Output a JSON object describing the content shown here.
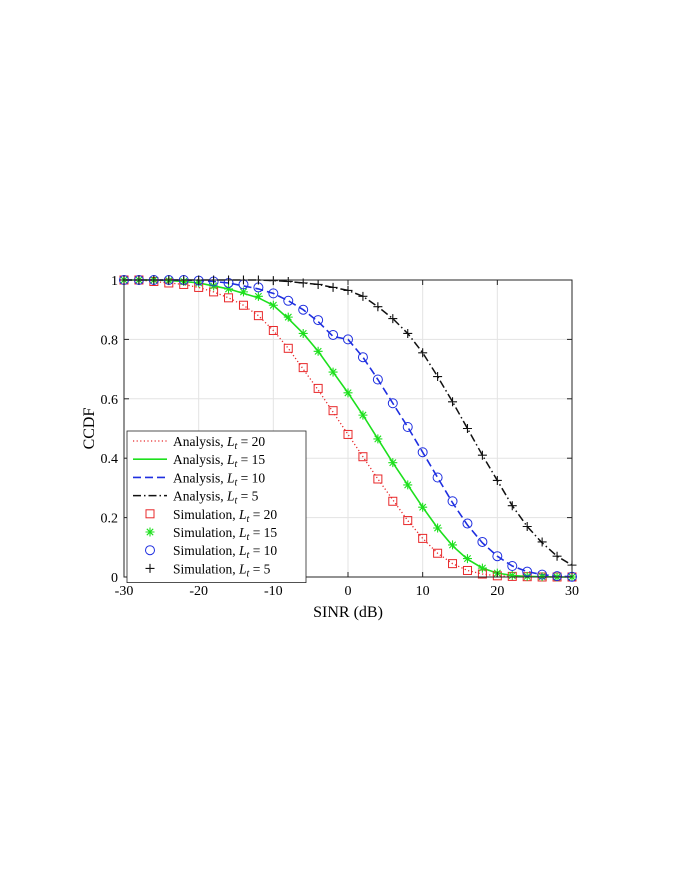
{
  "chart_data": {
    "type": "line",
    "title": "",
    "xlabel": "SINR (dB)",
    "ylabel": "CCDF",
    "xlim": [
      -30,
      30
    ],
    "ylim": [
      0,
      1
    ],
    "xticks": [
      -30,
      -20,
      -10,
      0,
      10,
      20,
      30
    ],
    "yticks": [
      0,
      0.2,
      0.4,
      0.6,
      0.8,
      1
    ],
    "xtick_labels": [
      "-30",
      "-20",
      "-10",
      "0",
      "10",
      "20",
      "30"
    ],
    "ytick_labels": [
      "0",
      "0.2",
      "0.4",
      "0.6",
      "0.8",
      "1"
    ],
    "grid": true,
    "legend_position": "bottom-left",
    "x": [
      -30,
      -28,
      -26,
      -24,
      -22,
      -20,
      -18,
      -16,
      -14,
      -12,
      -10,
      -8,
      -6,
      -4,
      -2,
      0,
      2,
      4,
      6,
      8,
      10,
      12,
      14,
      16,
      18,
      20,
      22,
      24,
      26,
      28,
      30
    ],
    "series": [
      {
        "name": "Analysis, L_t = 20",
        "kind": "analysis",
        "color": "#e8282a",
        "style": "dotted",
        "values": [
          1.0,
          1.0,
          0.995,
          0.99,
          0.985,
          0.975,
          0.96,
          0.94,
          0.915,
          0.88,
          0.83,
          0.77,
          0.7,
          0.63,
          0.555,
          0.48,
          0.405,
          0.33,
          0.26,
          0.19,
          0.13,
          0.08,
          0.045,
          0.022,
          0.01,
          0.004,
          0.002,
          0.001,
          0.0,
          0.0,
          0.0
        ]
      },
      {
        "name": "Analysis, L_t = 15",
        "kind": "analysis",
        "color": "#1de01d",
        "style": "solid",
        "values": [
          1.0,
          1.0,
          1.0,
          0.998,
          0.995,
          0.99,
          0.98,
          0.97,
          0.955,
          0.94,
          0.915,
          0.87,
          0.82,
          0.76,
          0.69,
          0.62,
          0.545,
          0.465,
          0.385,
          0.31,
          0.235,
          0.165,
          0.105,
          0.06,
          0.03,
          0.013,
          0.005,
          0.002,
          0.001,
          0.0,
          0.0
        ]
      },
      {
        "name": "Analysis, L_t = 10",
        "kind": "analysis",
        "color": "#1f2fe0",
        "style": "dashed",
        "values": [
          1.0,
          1.0,
          1.0,
          1.0,
          1.0,
          0.998,
          0.995,
          0.99,
          0.98,
          0.97,
          0.955,
          0.93,
          0.9,
          0.86,
          0.81,
          0.8,
          0.74,
          0.665,
          0.585,
          0.505,
          0.42,
          0.335,
          0.25,
          0.175,
          0.115,
          0.07,
          0.037,
          0.018,
          0.008,
          0.003,
          0.001
        ]
      },
      {
        "name": "Analysis, L_t = 5",
        "kind": "analysis",
        "color": "#111111",
        "style": "dashdot",
        "values": [
          1.0,
          1.0,
          1.0,
          1.0,
          1.0,
          1.0,
          1.0,
          1.0,
          1.0,
          1.0,
          0.998,
          0.995,
          0.99,
          0.985,
          0.975,
          0.965,
          0.945,
          0.91,
          0.87,
          0.82,
          0.755,
          0.675,
          0.59,
          0.5,
          0.41,
          0.325,
          0.24,
          0.17,
          0.115,
          0.07,
          0.04
        ]
      },
      {
        "name": "Simulation, L_t = 20",
        "kind": "simulation",
        "marker": "square",
        "color": "#e8282a",
        "values": [
          1.0,
          1.0,
          0.995,
          0.99,
          0.985,
          0.975,
          0.96,
          0.94,
          0.915,
          0.88,
          0.83,
          0.77,
          0.705,
          0.635,
          0.56,
          0.48,
          0.405,
          0.33,
          0.255,
          0.19,
          0.13,
          0.08,
          0.045,
          0.022,
          0.01,
          0.004,
          0.002,
          0.001,
          0.0,
          0.0,
          0.0
        ]
      },
      {
        "name": "Simulation, L_t = 15",
        "kind": "simulation",
        "marker": "asterisk",
        "color": "#1de01d",
        "values": [
          1.0,
          1.0,
          1.0,
          0.998,
          0.995,
          0.99,
          0.98,
          0.97,
          0.96,
          0.945,
          0.915,
          0.875,
          0.82,
          0.76,
          0.69,
          0.62,
          0.545,
          0.465,
          0.385,
          0.31,
          0.235,
          0.165,
          0.108,
          0.062,
          0.03,
          0.013,
          0.005,
          0.002,
          0.001,
          0.0,
          0.0
        ]
      },
      {
        "name": "Simulation, L_t = 10",
        "kind": "simulation",
        "marker": "circle",
        "color": "#1f2fe0",
        "values": [
          1.0,
          1.0,
          1.0,
          1.0,
          1.0,
          0.998,
          0.995,
          0.99,
          0.985,
          0.975,
          0.955,
          0.93,
          0.9,
          0.865,
          0.815,
          0.8,
          0.74,
          0.665,
          0.585,
          0.505,
          0.42,
          0.335,
          0.255,
          0.18,
          0.118,
          0.07,
          0.037,
          0.018,
          0.008,
          0.003,
          0.001
        ]
      },
      {
        "name": "Simulation, L_t = 5",
        "kind": "simulation",
        "marker": "plus",
        "color": "#111111",
        "values": [
          1.0,
          1.0,
          1.0,
          1.0,
          1.0,
          1.0,
          1.0,
          1.0,
          1.0,
          1.0,
          0.998,
          0.995,
          0.99,
          0.985,
          0.975,
          0.965,
          0.945,
          0.91,
          0.87,
          0.82,
          0.755,
          0.675,
          0.59,
          0.5,
          0.41,
          0.325,
          0.24,
          0.17,
          0.118,
          0.07,
          0.04
        ]
      }
    ],
    "legend": [
      {
        "prefix": "Analysis, ",
        "var": "L",
        "sub": "t",
        "suffix": " = 20"
      },
      {
        "prefix": "Analysis, ",
        "var": "L",
        "sub": "t",
        "suffix": " = 15"
      },
      {
        "prefix": "Analysis, ",
        "var": "L",
        "sub": "t",
        "suffix": " = 10"
      },
      {
        "prefix": "Analysis, ",
        "var": "L",
        "sub": "t",
        "suffix": " = 5"
      },
      {
        "prefix": "Simulation, ",
        "var": "L",
        "sub": "t",
        "suffix": " = 20"
      },
      {
        "prefix": "Simulation, ",
        "var": "L",
        "sub": "t",
        "suffix": " = 15"
      },
      {
        "prefix": "Simulation, ",
        "var": "L",
        "sub": "t",
        "suffix": " = 10"
      },
      {
        "prefix": "Simulation, ",
        "var": "L",
        "sub": "t",
        "suffix": " = 5"
      }
    ],
    "colors": {
      "grid": "#e3e3e3",
      "axes": "#262626",
      "legend_border": "#262626"
    }
  }
}
